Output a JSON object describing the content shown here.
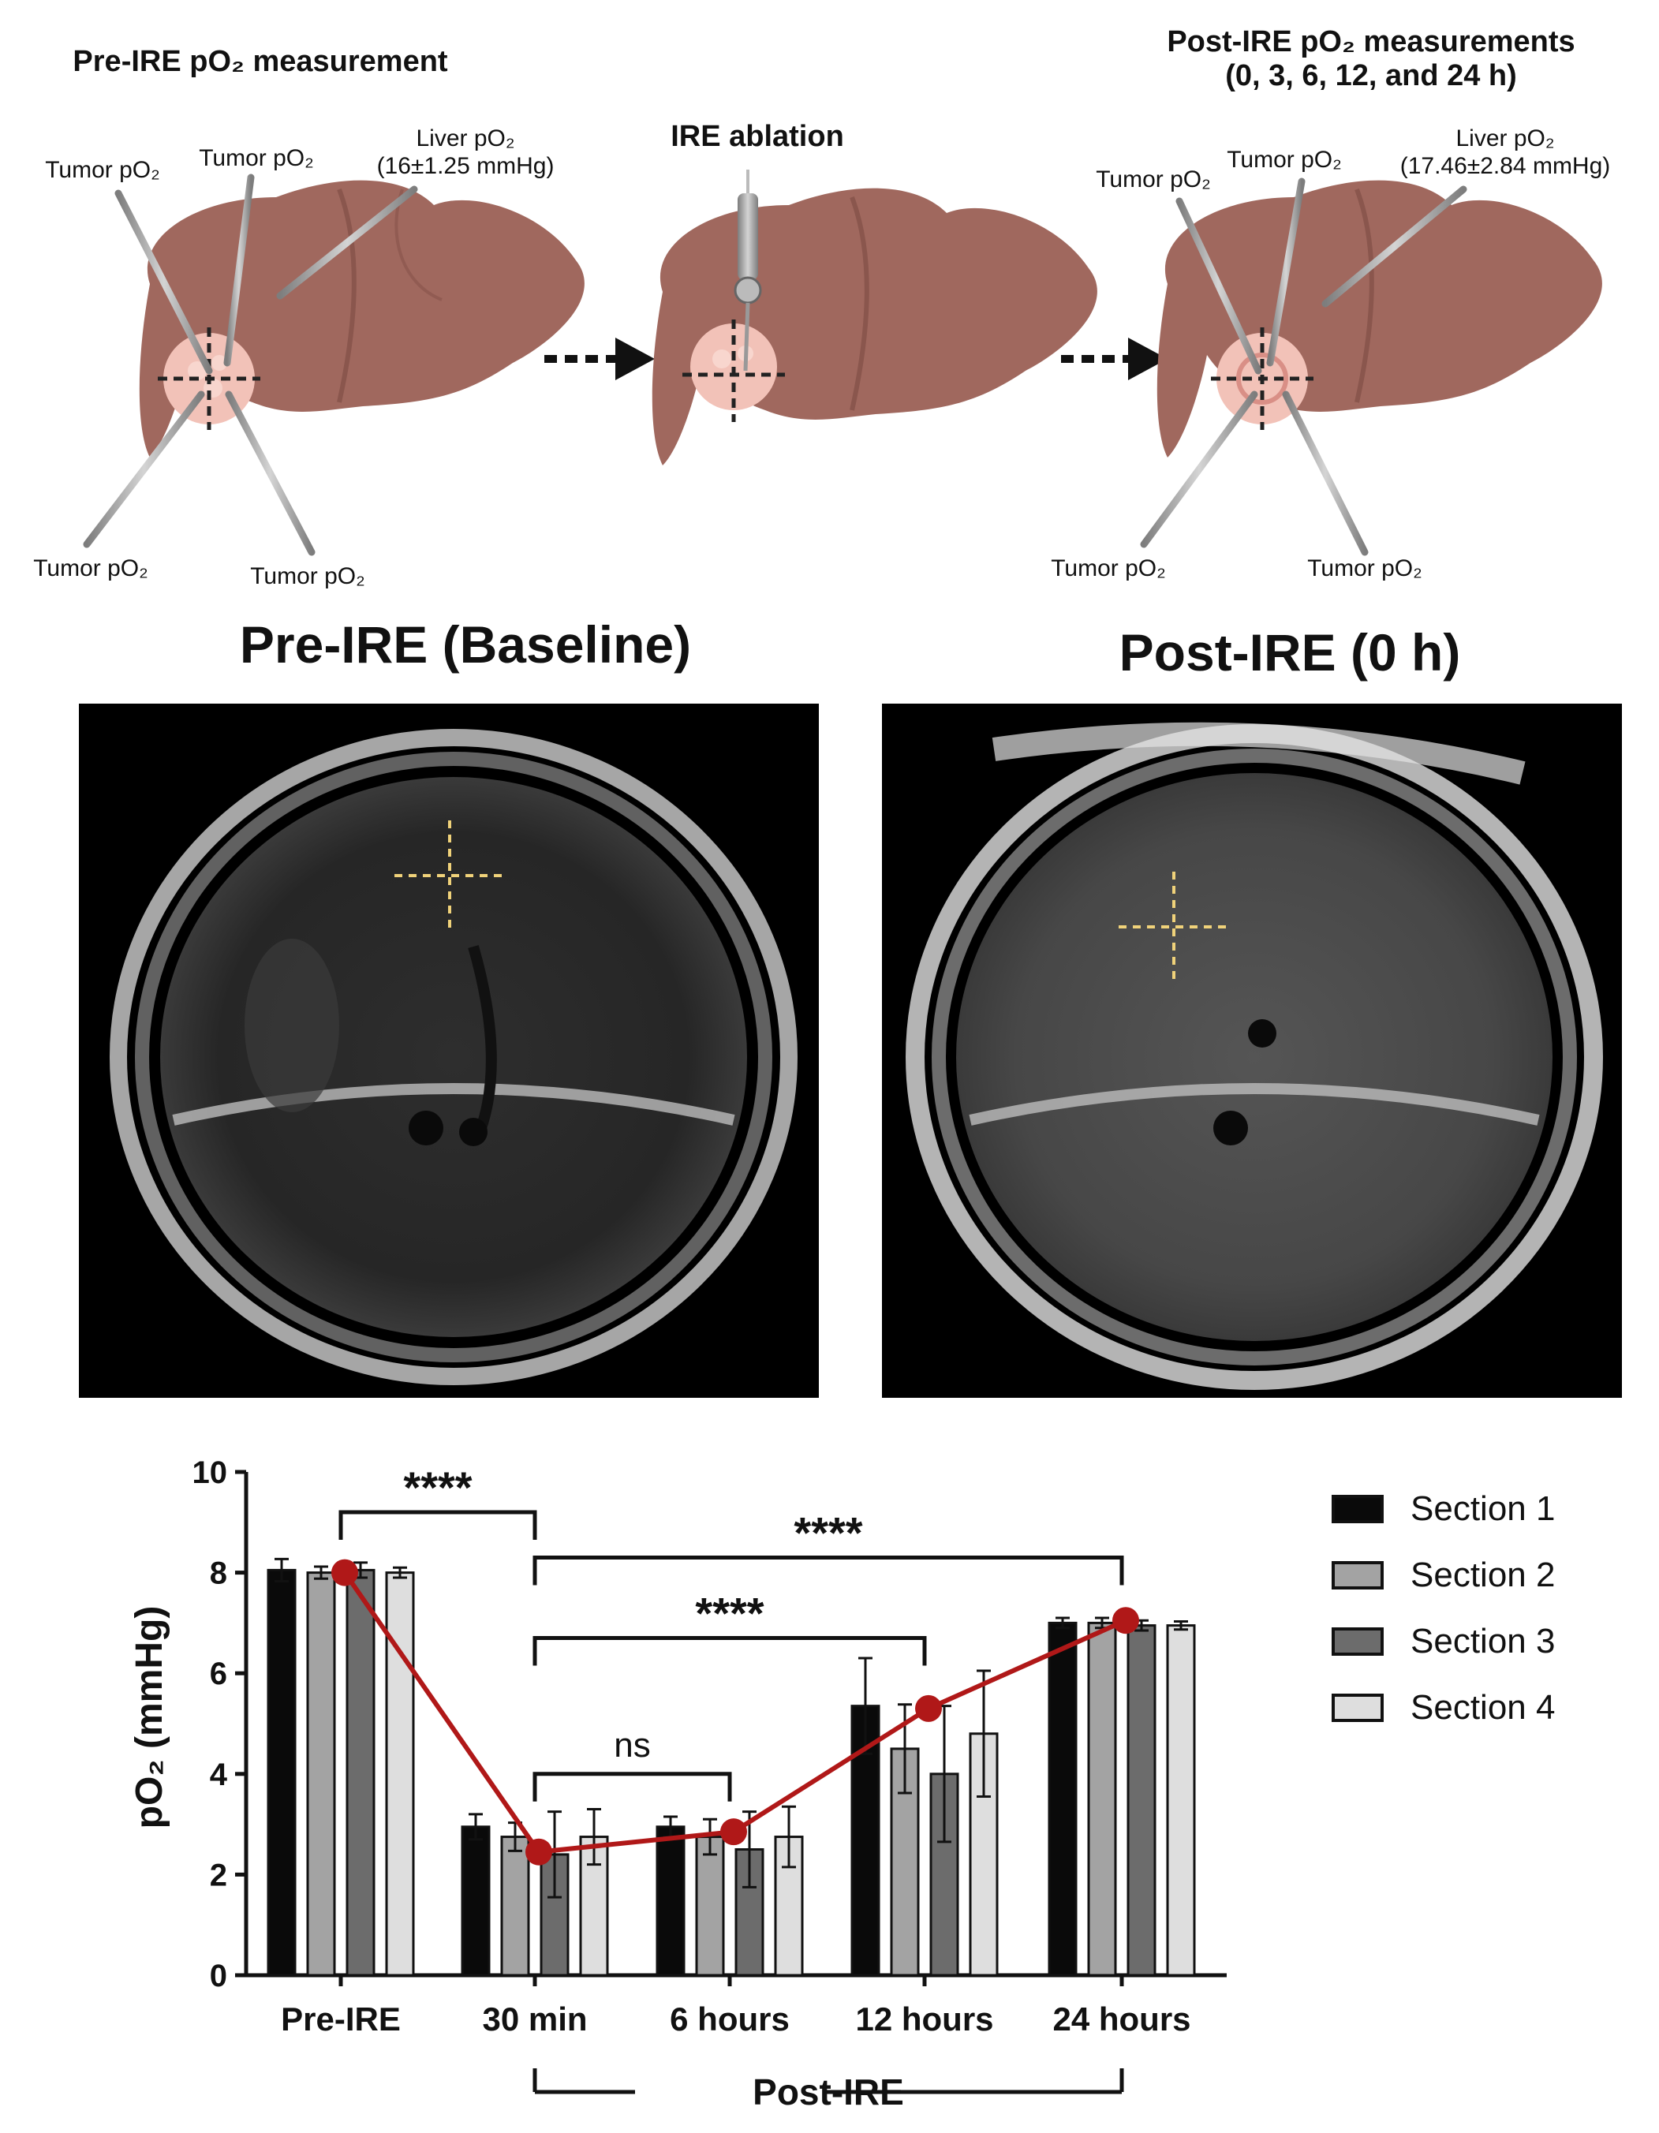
{
  "diagram": {
    "pre": {
      "title": "Pre-IRE pO₂ measurement",
      "tumor_label": "Tumor pO₂",
      "liver_label": "Liver pO₂",
      "liver_value": "(16±1.25 mmHg)"
    },
    "ablation": {
      "title": "IRE ablation"
    },
    "post": {
      "title_line1": "Post-IRE pO₂ measurements",
      "title_line2": "(0, 3, 6, 12, and 24 h)",
      "tumor_label": "Tumor pO₂",
      "liver_label": "Liver pO₂",
      "liver_value": "(17.46±2.84 mmHg)"
    }
  },
  "images": {
    "left_title": "Pre-IRE (Baseline)",
    "right_title": "Post-IRE (0 h)"
  },
  "colors": {
    "liver": "#a0685e",
    "liver_dark": "#8a564d",
    "tumor": "#f2c2b8",
    "crosshair": "#f0d27a",
    "mean_line": "#b01818",
    "section_colors": [
      "#0a0a0a",
      "#a3a3a3",
      "#6c6c6c",
      "#dedede"
    ]
  },
  "chart_data": {
    "type": "bar",
    "categories": [
      "Pre-IRE",
      "30 min",
      "6 hours",
      "12 hours",
      "24 hours"
    ],
    "series": [
      {
        "name": "Section 1",
        "values": [
          8.05,
          2.95,
          2.95,
          5.35,
          7.0
        ],
        "errors": [
          0.22,
          0.25,
          0.2,
          0.95,
          0.1
        ]
      },
      {
        "name": "Section 2",
        "values": [
          8.0,
          2.75,
          2.75,
          4.5,
          7.0
        ],
        "errors": [
          0.12,
          0.28,
          0.35,
          0.88,
          0.1
        ]
      },
      {
        "name": "Section 3",
        "values": [
          8.05,
          2.4,
          2.5,
          4.0,
          6.95
        ],
        "errors": [
          0.15,
          0.85,
          0.75,
          1.35,
          0.1
        ]
      },
      {
        "name": "Section 4",
        "values": [
          8.0,
          2.75,
          2.75,
          4.8,
          6.95
        ],
        "errors": [
          0.1,
          0.55,
          0.6,
          1.25,
          0.08
        ]
      }
    ],
    "mean_line": {
      "name": "Mean",
      "values": [
        8.0,
        2.45,
        2.85,
        5.3,
        7.05
      ]
    },
    "ylabel": "pO₂ (mmHg)",
    "ylim": [
      0,
      10
    ],
    "yticks": [
      "0",
      "2",
      "4",
      "6",
      "8",
      "10"
    ],
    "significance": [
      {
        "from": 0,
        "to": 1,
        "label": "****"
      },
      {
        "from": 1,
        "to": 4,
        "label": "****"
      },
      {
        "from": 1,
        "to": 3,
        "label": "****"
      },
      {
        "from": 1,
        "to": 2,
        "label": "ns"
      }
    ],
    "group_bracket": {
      "from": 1,
      "to": 4,
      "label": "Post-IRE"
    },
    "legend_position": "right"
  }
}
